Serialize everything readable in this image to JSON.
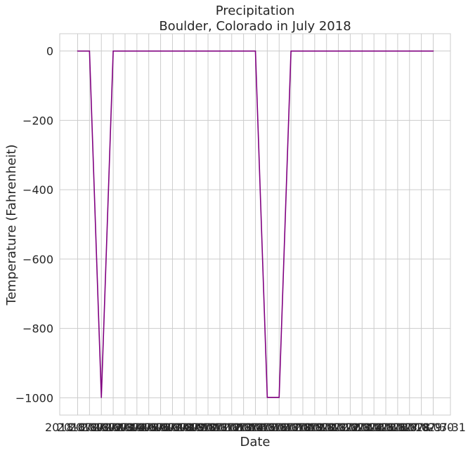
{
  "chart_data": {
    "type": "line",
    "title": "Precipitation",
    "subtitle": "Boulder, Colorado in July 2018",
    "xlabel": "Date",
    "ylabel": "Temperature (Fahrenheit)",
    "x": [
      "2018-07-01",
      "2018-07-02",
      "2018-07-03",
      "2018-07-04",
      "2018-07-05",
      "2018-07-06",
      "2018-07-07",
      "2018-07-08",
      "2018-07-09",
      "2018-07-10",
      "2018-07-11",
      "2018-07-12",
      "2018-07-13",
      "2018-07-14",
      "2018-07-15",
      "2018-07-16",
      "2018-07-17",
      "2018-07-18",
      "2018-07-19",
      "2018-07-20",
      "2018-07-21",
      "2018-07-22",
      "2018-07-23",
      "2018-07-24",
      "2018-07-25",
      "2018-07-26",
      "2018-07-27",
      "2018-07-28",
      "2018-07-29",
      "2018-07-30",
      "2018-07-31"
    ],
    "series": [
      {
        "color": "#800080",
        "values": [
          0,
          0,
          -999,
          0,
          0,
          0,
          0,
          0,
          0,
          0,
          0,
          0,
          0,
          0,
          0,
          0,
          -999,
          -999,
          0,
          0,
          0,
          0,
          0,
          0,
          0,
          0,
          0,
          0,
          0,
          0,
          0
        ]
      }
    ],
    "ylim": [
      -1050,
      50
    ],
    "yticks": [
      0,
      -200,
      -400,
      -600,
      -800,
      -1000
    ],
    "ytick_labels": [
      "0",
      "−200",
      "−400",
      "−600",
      "−800",
      "−1000"
    ],
    "grid": true,
    "colors": {
      "grid": "#cccccc",
      "spine": "#cccccc",
      "text": "#262626"
    }
  }
}
